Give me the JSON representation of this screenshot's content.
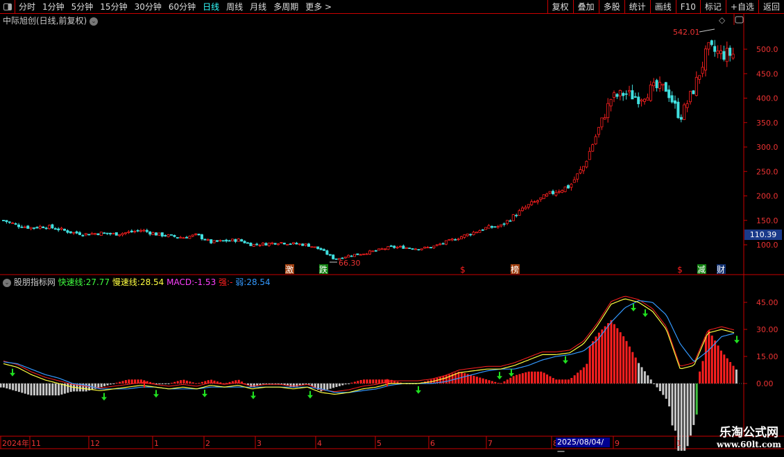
{
  "toolbar": {
    "periods": [
      "分时",
      "1分钟",
      "5分钟",
      "15分钟",
      "30分钟",
      "60分钟",
      "日线",
      "周线",
      "月线",
      "多周期",
      "更多 >"
    ],
    "active": "日线",
    "right_buttons": [
      "复权",
      "叠加",
      "多股",
      "统计",
      "画线",
      "F10",
      "标记",
      "+自选",
      "返回"
    ]
  },
  "main": {
    "title": "中际旭创(日线,前复权)",
    "high_label": "542.01",
    "low_label": "66.30",
    "current_price": "110.39",
    "y_ticks": [
      "500.0",
      "450.0",
      "400.0",
      "350.0",
      "300.0",
      "250.0",
      "200.0",
      "150.0",
      "100.0"
    ],
    "event_markers": [
      {
        "text": "激",
        "color": "#a04010"
      },
      {
        "text": "跌",
        "color": "#108010"
      },
      {
        "text": "$",
        "color": "#ff2020"
      },
      {
        "text": "榜",
        "color": "#a04010"
      },
      {
        "text": "$",
        "color": "#ff2020"
      },
      {
        "text": "减",
        "color": "#108010"
      },
      {
        "text": "财",
        "color": "#103070"
      }
    ]
  },
  "indicator": {
    "name": "股朋指标网",
    "fast_label": "快速线:",
    "fast_value": "27.77",
    "slow_label": "慢速线:",
    "slow_value": "28.54",
    "macd_label": "MACD:",
    "macd_value": "-1.53",
    "strong_label": "强:",
    "strong_value": "-",
    "weak_label": "弱:",
    "weak_value": "28.54",
    "y_ticks": [
      "45.00",
      "30.00",
      "15.00",
      "0.00"
    ],
    "colors": {
      "fast": "#40ff40",
      "slow": "#ffff40",
      "macd": "#ff40ff",
      "strong": "#ff2020",
      "weak": "#3399ff"
    }
  },
  "date_axis": {
    "labels": [
      "2024年",
      "11",
      "12",
      "1",
      "2",
      "3",
      "4",
      "5",
      "6",
      "7",
      "8",
      "9",
      "1"
    ],
    "cursor_date": "2025/08/04/一"
  },
  "watermark": {
    "line1": "乐淘公式网",
    "line2": "www.60lt.com"
  },
  "chart_data": {
    "type": "candlestick",
    "up_color": "#ff2020",
    "down_color": "#40e0e0",
    "closes": [
      150,
      140,
      135,
      138,
      132,
      125,
      122,
      124,
      122,
      125,
      130,
      122,
      118,
      115,
      120,
      105,
      108,
      110,
      100,
      102,
      105,
      102,
      100,
      90,
      70,
      78,
      82,
      88,
      95,
      95,
      92,
      95,
      105,
      115,
      125,
      135,
      138,
      160,
      180,
      195,
      210,
      220,
      260,
      330,
      400,
      410,
      400,
      420,
      420,
      360,
      420,
      500,
      490,
      490
    ],
    "ylim": [
      40,
      560
    ],
    "fast": [
      11,
      9,
      5,
      2,
      0,
      -2,
      -3,
      -4,
      -3,
      -2,
      -1,
      -2,
      -3,
      -2,
      -3,
      -1,
      -2,
      -1,
      -3,
      -2,
      -2,
      -3,
      -2,
      -5,
      -6,
      -5,
      -3,
      -2,
      0,
      0,
      0,
      1,
      3,
      6,
      7,
      8,
      8,
      10,
      13,
      16,
      16,
      17,
      22,
      32,
      44,
      47,
      45,
      40,
      30,
      8,
      10,
      28,
      30,
      28
    ],
    "slow": [
      12,
      11,
      8,
      5,
      3,
      0,
      -1,
      -3,
      -3,
      -3,
      -2,
      -2,
      -3,
      -3,
      -3,
      -2,
      -2,
      -2,
      -2,
      -2,
      -2,
      -2,
      -2,
      -3,
      -5,
      -5,
      -4,
      -3,
      -1,
      0,
      0,
      0,
      1,
      3,
      5,
      7,
      8,
      8,
      10,
      13,
      15,
      16,
      18,
      24,
      34,
      42,
      46,
      45,
      38,
      22,
      12,
      18,
      26,
      28
    ],
    "indicator_ylim": [
      -12,
      55
    ]
  }
}
